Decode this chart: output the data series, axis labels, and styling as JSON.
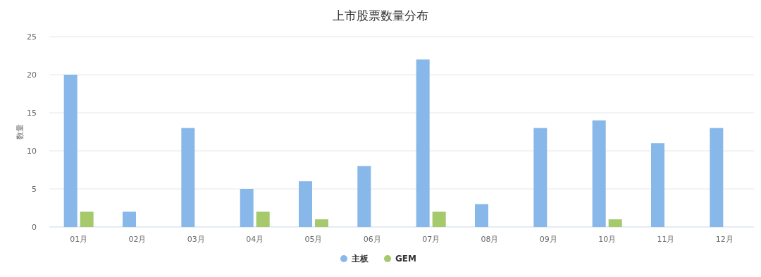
{
  "chart_data": {
    "type": "bar",
    "title": "上市股票数量分布",
    "ylabel": "数量",
    "categories": [
      "01月",
      "02月",
      "03月",
      "04月",
      "05月",
      "06月",
      "07月",
      "08月",
      "09月",
      "10月",
      "11月",
      "12月"
    ],
    "series": [
      {
        "name": "主板",
        "color": "#88b7ea",
        "values": [
          20,
          2,
          13,
          5,
          6,
          8,
          22,
          3,
          13,
          14,
          11,
          13
        ]
      },
      {
        "name": "GEM",
        "color": "#a5c96b",
        "values": [
          2,
          0,
          0,
          2,
          1,
          0,
          2,
          0,
          0,
          1,
          0,
          0
        ]
      }
    ],
    "ylim": [
      0,
      25
    ],
    "yticks": [
      0,
      5,
      10,
      15,
      20,
      25
    ],
    "grid": "y",
    "legend": "bottom"
  }
}
